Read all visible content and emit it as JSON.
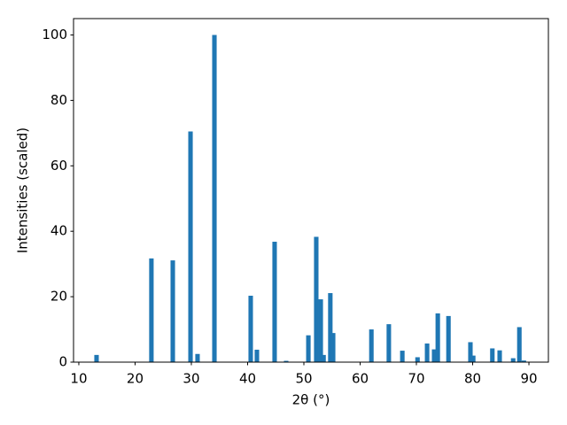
{
  "chart_data": {
    "type": "bar",
    "xlabel": "2θ (°)",
    "ylabel": "Intensities (scaled)",
    "color": "#1f77b4",
    "x": [
      13.15,
      22.9,
      26.7,
      29.85,
      31.1,
      34.1,
      40.55,
      41.65,
      44.8,
      46.85,
      50.8,
      52.2,
      53.0,
      53.5,
      54.7,
      55.2,
      62.0,
      65.1,
      67.5,
      70.2,
      71.9,
      73.15,
      73.8,
      75.7,
      79.6,
      80.1,
      83.5,
      84.8,
      87.2,
      88.3,
      89.1
    ],
    "values": [
      2.2,
      31.7,
      31.1,
      70.5,
      2.5,
      100,
      20.3,
      3.8,
      36.8,
      0.4,
      8.2,
      38.3,
      19.2,
      2.2,
      21.1,
      8.9,
      10,
      11.6,
      3.5,
      1.5,
      5.7,
      3.9,
      14.9,
      14.1,
      6.1,
      2.0,
      4.2,
      3.6,
      1.2,
      10.7,
      0.5
    ],
    "xlim": [
      9.06,
      93.46
    ],
    "ylim": [
      0,
      105
    ],
    "xticks": [
      10,
      20,
      30,
      40,
      50,
      60,
      70,
      80,
      90
    ],
    "yticks": [
      0,
      20,
      40,
      60,
      80,
      100
    ],
    "grid": false
  }
}
